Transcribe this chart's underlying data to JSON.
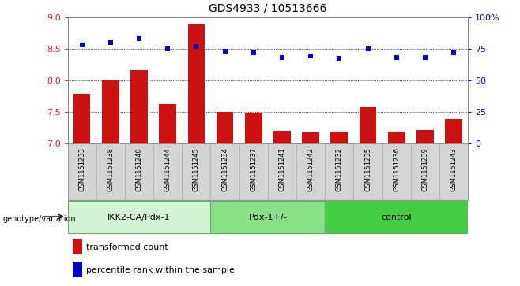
{
  "title": "GDS4933 / 10513666",
  "samples": [
    "GSM1151233",
    "GSM1151238",
    "GSM1151240",
    "GSM1151244",
    "GSM1151245",
    "GSM1151234",
    "GSM1151237",
    "GSM1151241",
    "GSM1151242",
    "GSM1151232",
    "GSM1151235",
    "GSM1151236",
    "GSM1151239",
    "GSM1151243"
  ],
  "bar_values": [
    7.78,
    7.99,
    8.16,
    7.62,
    8.88,
    7.49,
    7.48,
    7.19,
    7.17,
    7.18,
    7.57,
    7.18,
    7.21,
    7.38
  ],
  "dot_values": [
    78,
    80,
    83,
    75,
    77,
    73,
    72,
    68,
    69,
    67,
    75,
    68,
    68,
    72
  ],
  "groups": [
    {
      "label": "IKK2-CA/Pdx-1",
      "start": 0,
      "end": 5,
      "color": "#d4f5d4"
    },
    {
      "label": "Pdx-1+/-",
      "start": 5,
      "end": 9,
      "color": "#88e088"
    },
    {
      "label": "control",
      "start": 9,
      "end": 14,
      "color": "#44cc44"
    }
  ],
  "bar_color": "#cc1111",
  "dot_color": "#0000cc",
  "ylim_left": [
    7.0,
    9.0
  ],
  "ylim_right": [
    0,
    100
  ],
  "yticks_left": [
    7.0,
    7.5,
    8.0,
    8.5,
    9.0
  ],
  "yticks_right": [
    0,
    25,
    50,
    75,
    100
  ],
  "grid_values": [
    7.5,
    8.0,
    8.5
  ],
  "legend_bar_label": "transformed count",
  "legend_dot_label": "percentile rank within the sample",
  "genotype_label": "genotype/variation",
  "background_color": "#ffffff",
  "plot_bg_color": "#ffffff",
  "tick_area_color": "#d4d4d4",
  "group_border_color": "#60b060"
}
